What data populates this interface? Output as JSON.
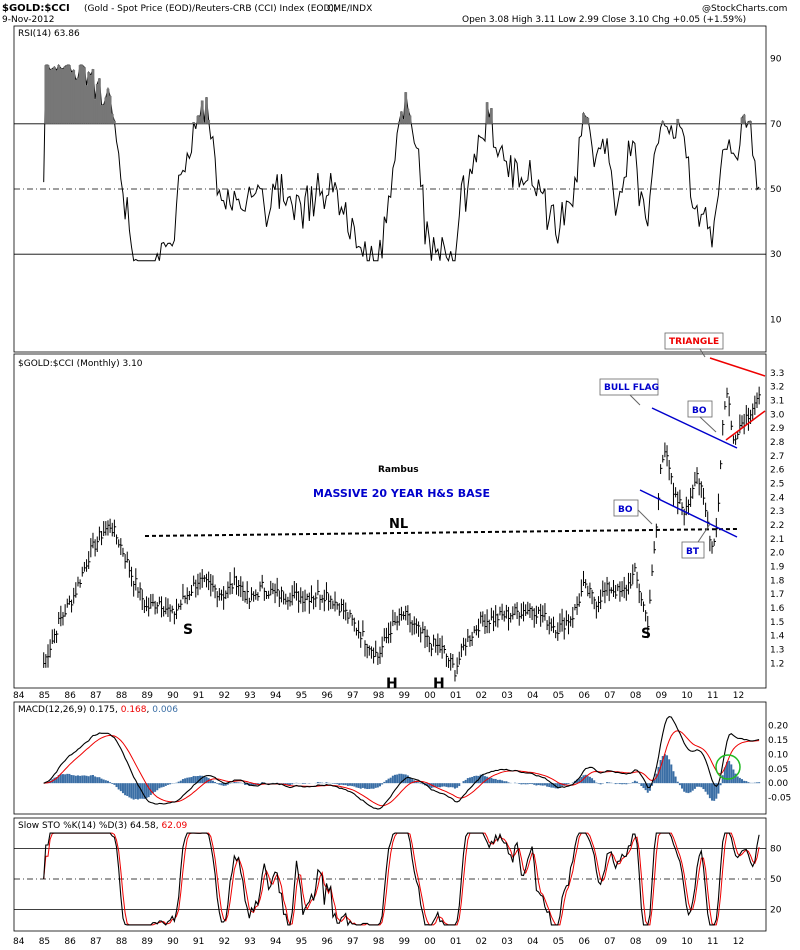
{
  "header": {
    "symbol": "$GOLD:$CCI",
    "description": "(Gold - Spot Price (EOD)/Reuters-CRB (CCI) Index (EOD))",
    "exchange": "CME/INDX",
    "date": "9-Nov-2012",
    "ohlc": "Open 3.08  High 3.11  Low 2.99  Close 3.10  Chg +0.05 (+1.59%)",
    "watermark": "@StockCharts.com"
  },
  "colors": {
    "price": "#000000",
    "annotation_blue": "#0000cc",
    "annotation_red": "#ee0000",
    "macd_line": "#000000",
    "signal_line": "#ee0000",
    "histogram": "#3a6ea5",
    "circle": "#22bb22",
    "shade": "#777777"
  },
  "x_ticks": [
    "84",
    "85",
    "86",
    "87",
    "88",
    "89",
    "90",
    "91",
    "92",
    "93",
    "94",
    "95",
    "96",
    "97",
    "98",
    "99",
    "00",
    "01",
    "02",
    "03",
    "04",
    "05",
    "06",
    "07",
    "08",
    "09",
    "10",
    "11",
    "12"
  ],
  "chart_data": [
    {
      "type": "line",
      "panel": "rsi",
      "legend": "RSI(14) 63.86",
      "ylim": [
        0,
        100
      ],
      "y_ticks": [
        90,
        70,
        50,
        30,
        10
      ],
      "reference_lines": [
        70,
        50,
        30
      ],
      "overbought_shading": true
    },
    {
      "type": "bar",
      "panel": "price",
      "legend": "$GOLD:$CCI (Monthly) 3.10",
      "ylim": [
        1.08,
        3.35
      ],
      "y_ticks": [
        "3.3",
        "3.2",
        "3.1",
        "3.0",
        "2.9",
        "2.8",
        "2.7",
        "2.6",
        "2.5",
        "2.4",
        "2.3",
        "2.2",
        "2.1",
        "2.0",
        "1.9",
        "1.8",
        "1.7",
        "1.6",
        "1.5",
        "1.4",
        "1.3",
        "1.2"
      ],
      "anchors": [
        [
          1985.0,
          1.2
        ],
        [
          1985.6,
          1.5
        ],
        [
          1986.2,
          1.7
        ],
        [
          1986.8,
          2.0
        ],
        [
          1987.3,
          2.15
        ],
        [
          1987.6,
          2.2
        ],
        [
          1988.0,
          2.05
        ],
        [
          1988.4,
          1.85
        ],
        [
          1989.0,
          1.6
        ],
        [
          1989.5,
          1.65
        ],
        [
          1990.0,
          1.55
        ],
        [
          1990.4,
          1.65
        ],
        [
          1991.0,
          1.8
        ],
        [
          1991.5,
          1.75
        ],
        [
          1992.0,
          1.7
        ],
        [
          1992.5,
          1.8
        ],
        [
          1993.0,
          1.65
        ],
        [
          1993.5,
          1.75
        ],
        [
          1994.0,
          1.7
        ],
        [
          1995.0,
          1.68
        ],
        [
          1996.0,
          1.7
        ],
        [
          1996.6,
          1.6
        ],
        [
          1997.0,
          1.5
        ],
        [
          1997.6,
          1.35
        ],
        [
          1998.0,
          1.25
        ],
        [
          1998.5,
          1.45
        ],
        [
          1999.0,
          1.55
        ],
        [
          1999.5,
          1.45
        ],
        [
          2000.0,
          1.35
        ],
        [
          2000.5,
          1.3
        ],
        [
          2001.0,
          1.15
        ],
        [
          2001.4,
          1.35
        ],
        [
          2002.0,
          1.5
        ],
        [
          2003.0,
          1.55
        ],
        [
          2004.0,
          1.6
        ],
        [
          2005.0,
          1.45
        ],
        [
          2005.6,
          1.55
        ],
        [
          2006.0,
          1.75
        ],
        [
          2006.5,
          1.65
        ],
        [
          2007.0,
          1.75
        ],
        [
          2007.5,
          1.7
        ],
        [
          2008.0,
          1.85
        ],
        [
          2008.5,
          1.5
        ],
        [
          2008.8,
          2.1
        ],
        [
          2009.0,
          2.6
        ],
        [
          2009.2,
          2.8
        ],
        [
          2009.5,
          2.4
        ],
        [
          2010.0,
          2.3
        ],
        [
          2010.4,
          2.6
        ],
        [
          2010.8,
          2.25
        ],
        [
          2011.0,
          2.05
        ],
        [
          2011.2,
          2.2
        ],
        [
          2011.4,
          2.9
        ],
        [
          2011.6,
          3.2
        ],
        [
          2011.8,
          2.8
        ],
        [
          2012.0,
          2.9
        ],
        [
          2012.4,
          3.0
        ],
        [
          2012.7,
          3.1
        ]
      ],
      "annotations": {
        "author": "Rambus",
        "title": "MASSIVE 20 YEAR H&S BASE",
        "neckline": "NL",
        "shoulder_left": "S",
        "head_1": "H",
        "head_2": "H",
        "shoulder_right": "S",
        "bull_flag": "BULL FLAG",
        "breakout_1": "BO",
        "breakout_2": "BO",
        "backtest": "BT",
        "triangle": "TRIANGLE"
      }
    },
    {
      "type": "line",
      "panel": "macd",
      "legend_prefix": "MACD(12,26,9)",
      "macd_value": "0.175",
      "signal_value": "0.168",
      "hist_value": "0.006",
      "ylim": [
        -0.1,
        0.24
      ],
      "y_ticks": [
        "0.20",
        "0.15",
        "0.10",
        "0.05",
        "0.00",
        "-0.05"
      ]
    },
    {
      "type": "line",
      "panel": "stoch",
      "legend_prefix": "Slow STO %K(14) %D(3)",
      "k_value": "64.58",
      "d_value": "62.09",
      "ylim": [
        0,
        100
      ],
      "y_ticks": [
        "80",
        "50",
        "20"
      ],
      "reference_lines": [
        80,
        50,
        20
      ]
    }
  ]
}
